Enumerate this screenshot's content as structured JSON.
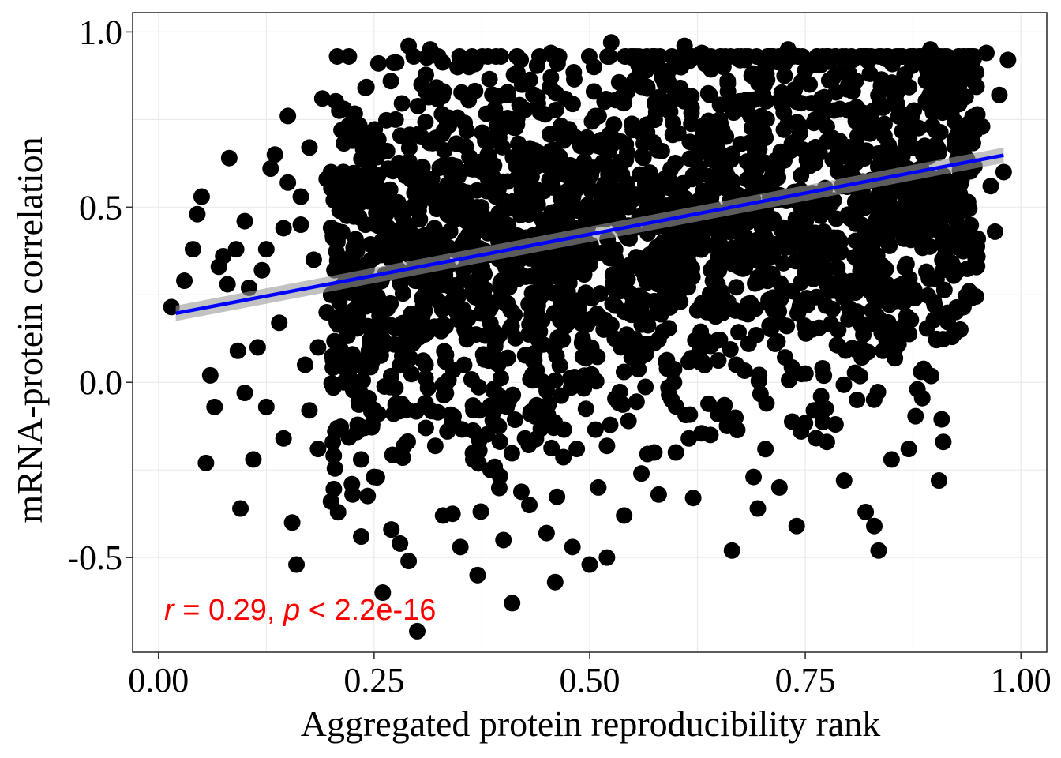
{
  "chart_data": {
    "type": "scatter",
    "title": "",
    "xlabel": "Aggregated protein reproducibility rank",
    "ylabel": "mRNA-protein correlation",
    "xlim": [
      -0.03,
      1.03
    ],
    "ylim": [
      -0.77,
      1.055
    ],
    "x_ticks": [
      0.0,
      0.25,
      0.5,
      0.75,
      1.0
    ],
    "x_tick_labels": [
      "0.00",
      "0.25",
      "0.50",
      "0.75",
      "1.00"
    ],
    "y_ticks": [
      -0.5,
      0.0,
      0.5,
      1.0
    ],
    "y_tick_labels": [
      "-0.5",
      "0.0",
      "0.5",
      "1.0"
    ],
    "grid": true,
    "point_color": "#000000",
    "fit_line": {
      "x": [
        0.02,
        0.98
      ],
      "y": [
        0.197,
        0.648
      ],
      "color": "#0000ff",
      "confidence_band_color": "#999999"
    },
    "annotation": {
      "r_symbol": "r",
      "eq_r": " = 0.29, ",
      "p_symbol": "p",
      "p_text": " < 2.2e-16",
      "color": "#ff0000"
    },
    "dense_band": {
      "x_range": [
        0.2,
        0.95
      ],
      "y_mean_at_x0": 0.2,
      "y_mean_at_x1": 0.65,
      "spread": 0.28
    },
    "points": [
      [
        0.015,
        0.215
      ],
      [
        0.03,
        0.29
      ],
      [
        0.04,
        0.38
      ],
      [
        0.045,
        0.48
      ],
      [
        0.05,
        0.53
      ],
      [
        0.055,
        -0.23
      ],
      [
        0.06,
        0.02
      ],
      [
        0.065,
        -0.07
      ],
      [
        0.07,
        0.33
      ],
      [
        0.075,
        0.36
      ],
      [
        0.08,
        0.28
      ],
      [
        0.082,
        0.64
      ],
      [
        0.09,
        0.38
      ],
      [
        0.092,
        0.09
      ],
      [
        0.095,
        -0.36
      ],
      [
        0.1,
        0.46
      ],
      [
        0.1,
        -0.03
      ],
      [
        0.105,
        0.27
      ],
      [
        0.11,
        -0.22
      ],
      [
        0.115,
        0.1
      ],
      [
        0.12,
        0.32
      ],
      [
        0.125,
        -0.07
      ],
      [
        0.13,
        0.61
      ],
      [
        0.135,
        0.65
      ],
      [
        0.14,
        0.17
      ],
      [
        0.145,
        -0.16
      ],
      [
        0.15,
        0.76
      ],
      [
        0.15,
        0.57
      ],
      [
        0.155,
        -0.4
      ],
      [
        0.16,
        -0.52
      ],
      [
        0.165,
        0.45
      ],
      [
        0.17,
        0.05
      ],
      [
        0.175,
        0.67
      ],
      [
        0.18,
        0.35
      ],
      [
        0.185,
        -0.19
      ],
      [
        0.19,
        0.81
      ],
      [
        0.195,
        0.2
      ],
      [
        0.2,
        0.6
      ],
      [
        0.2,
        -0.34
      ],
      [
        0.21,
        0.49
      ],
      [
        0.215,
        0.0
      ],
      [
        0.22,
        0.71
      ],
      [
        0.225,
        -0.32
      ],
      [
        0.23,
        0.3
      ],
      [
        0.235,
        -0.44
      ],
      [
        0.24,
        0.84
      ],
      [
        0.245,
        0.12
      ],
      [
        0.25,
        -0.27
      ],
      [
        0.25,
        0.55
      ],
      [
        0.255,
        0.91
      ],
      [
        0.26,
        -0.6
      ],
      [
        0.265,
        0.22
      ],
      [
        0.27,
        -0.42
      ],
      [
        0.275,
        0.75
      ],
      [
        0.28,
        -0.46
      ],
      [
        0.285,
        0.06
      ],
      [
        0.29,
        0.96
      ],
      [
        0.29,
        -0.51
      ],
      [
        0.295,
        0.4
      ],
      [
        0.3,
        -0.71
      ],
      [
        0.305,
        0.85
      ],
      [
        0.31,
        -0.13
      ],
      [
        0.315,
        0.95
      ],
      [
        0.32,
        0.44
      ],
      [
        0.33,
        -0.38
      ],
      [
        0.34,
        0.62
      ],
      [
        0.35,
        -0.47
      ],
      [
        0.355,
        0.15
      ],
      [
        0.36,
        0.9
      ],
      [
        0.37,
        -0.55
      ],
      [
        0.375,
        0.33
      ],
      [
        0.385,
        -0.25
      ],
      [
        0.39,
        0.78
      ],
      [
        0.4,
        -0.45
      ],
      [
        0.405,
        0.07
      ],
      [
        0.41,
        -0.63
      ],
      [
        0.415,
        0.58
      ],
      [
        0.42,
        0.92
      ],
      [
        0.43,
        -0.35
      ],
      [
        0.44,
        0.26
      ],
      [
        0.45,
        -0.43
      ],
      [
        0.455,
        0.94
      ],
      [
        0.46,
        -0.57
      ],
      [
        0.465,
        0.12
      ],
      [
        0.47,
        0.69
      ],
      [
        0.48,
        -0.47
      ],
      [
        0.49,
        0.36
      ],
      [
        0.5,
        -0.52
      ],
      [
        0.505,
        0.83
      ],
      [
        0.51,
        -0.3
      ],
      [
        0.515,
        0.18
      ],
      [
        0.52,
        -0.5
      ],
      [
        0.525,
        0.97
      ],
      [
        0.53,
        0.47
      ],
      [
        0.54,
        -0.38
      ],
      [
        0.55,
        0.72
      ],
      [
        0.56,
        -0.26
      ],
      [
        0.565,
        0.08
      ],
      [
        0.57,
        0.91
      ],
      [
        0.58,
        -0.32
      ],
      [
        0.585,
        0.4
      ],
      [
        0.59,
        0.88
      ],
      [
        0.6,
        -0.2
      ],
      [
        0.605,
        0.23
      ],
      [
        0.61,
        0.96
      ],
      [
        0.62,
        -0.33
      ],
      [
        0.625,
        0.6
      ],
      [
        0.63,
        0.94
      ],
      [
        0.64,
        -0.15
      ],
      [
        0.65,
        0.32
      ],
      [
        0.66,
        0.86
      ],
      [
        0.665,
        -0.48
      ],
      [
        0.67,
        0.05
      ],
      [
        0.675,
        0.68
      ],
      [
        0.68,
        0.92
      ],
      [
        0.69,
        -0.27
      ],
      [
        0.695,
        -0.36
      ],
      [
        0.7,
        0.44
      ],
      [
        0.71,
        0.93
      ],
      [
        0.715,
        0.11
      ],
      [
        0.72,
        -0.3
      ],
      [
        0.725,
        0.77
      ],
      [
        0.73,
        0.95
      ],
      [
        0.735,
        0.26
      ],
      [
        0.74,
        -0.41
      ],
      [
        0.745,
        0.59
      ],
      [
        0.75,
        0.89
      ],
      [
        0.76,
        -0.08
      ],
      [
        0.765,
        0.36
      ],
      [
        0.77,
        0.93
      ],
      [
        0.775,
        -0.17
      ],
      [
        0.78,
        0.51
      ],
      [
        0.785,
        -0.12
      ],
      [
        0.79,
        0.78
      ],
      [
        0.795,
        -0.28
      ],
      [
        0.8,
        0.18
      ],
      [
        0.805,
        0.92
      ],
      [
        0.81,
        -0.05
      ],
      [
        0.815,
        0.45
      ],
      [
        0.82,
        -0.37
      ],
      [
        0.825,
        0.71
      ],
      [
        0.83,
        -0.41
      ],
      [
        0.835,
        -0.48
      ],
      [
        0.84,
        0.09
      ],
      [
        0.845,
        0.55
      ],
      [
        0.85,
        -0.22
      ],
      [
        0.855,
        0.82
      ],
      [
        0.86,
        0.25
      ],
      [
        0.87,
        -0.19
      ],
      [
        0.875,
        0.67
      ],
      [
        0.88,
        -0.02
      ],
      [
        0.885,
        0.44
      ],
      [
        0.89,
        0.86
      ],
      [
        0.895,
        0.95
      ],
      [
        0.9,
        0.22
      ],
      [
        0.905,
        -0.28
      ],
      [
        0.91,
        0.59
      ],
      [
        0.91,
        -0.17
      ],
      [
        0.915,
        0.78
      ],
      [
        0.92,
        0.32
      ],
      [
        0.925,
        0.47
      ],
      [
        0.93,
        0.9
      ],
      [
        0.935,
        0.69
      ],
      [
        0.94,
        0.26
      ],
      [
        0.945,
        0.86
      ],
      [
        0.95,
        0.41
      ],
      [
        0.955,
        0.73
      ],
      [
        0.96,
        0.94
      ],
      [
        0.965,
        0.56
      ],
      [
        0.97,
        0.43
      ],
      [
        0.975,
        0.82
      ],
      [
        0.98,
        0.6
      ],
      [
        0.985,
        0.92
      ],
      [
        0.77,
        0.04
      ],
      [
        0.705,
        -0.06
      ],
      [
        0.745,
        -0.14
      ],
      [
        0.655,
        -0.09
      ],
      [
        0.595,
        -0.05
      ],
      [
        0.545,
        -0.11
      ],
      [
        0.615,
        -0.16
      ],
      [
        0.575,
        -0.2
      ],
      [
        0.485,
        -0.19
      ],
      [
        0.425,
        -0.16
      ],
      [
        0.365,
        -0.22
      ],
      [
        0.335,
        -0.14
      ],
      [
        0.285,
        -0.18
      ],
      [
        0.255,
        -0.09
      ],
      [
        0.235,
        -0.22
      ],
      [
        0.205,
        -0.14
      ],
      [
        0.175,
        -0.08
      ],
      [
        0.355,
        0.74
      ],
      [
        0.405,
        0.82
      ],
      [
        0.455,
        0.87
      ],
      [
        0.505,
        0.9
      ],
      [
        0.555,
        0.86
      ],
      [
        0.605,
        0.84
      ],
      [
        0.655,
        0.9
      ],
      [
        0.705,
        0.88
      ],
      [
        0.755,
        0.85
      ],
      [
        0.805,
        0.83
      ],
      [
        0.215,
        0.78
      ],
      [
        0.235,
        0.72
      ],
      [
        0.265,
        0.66
      ],
      [
        0.305,
        0.7
      ],
      [
        0.195,
        0.58
      ],
      [
        0.165,
        0.53
      ],
      [
        0.145,
        0.44
      ],
      [
        0.125,
        0.38
      ],
      [
        0.185,
        0.1
      ],
      [
        0.225,
        0.08
      ]
    ]
  }
}
